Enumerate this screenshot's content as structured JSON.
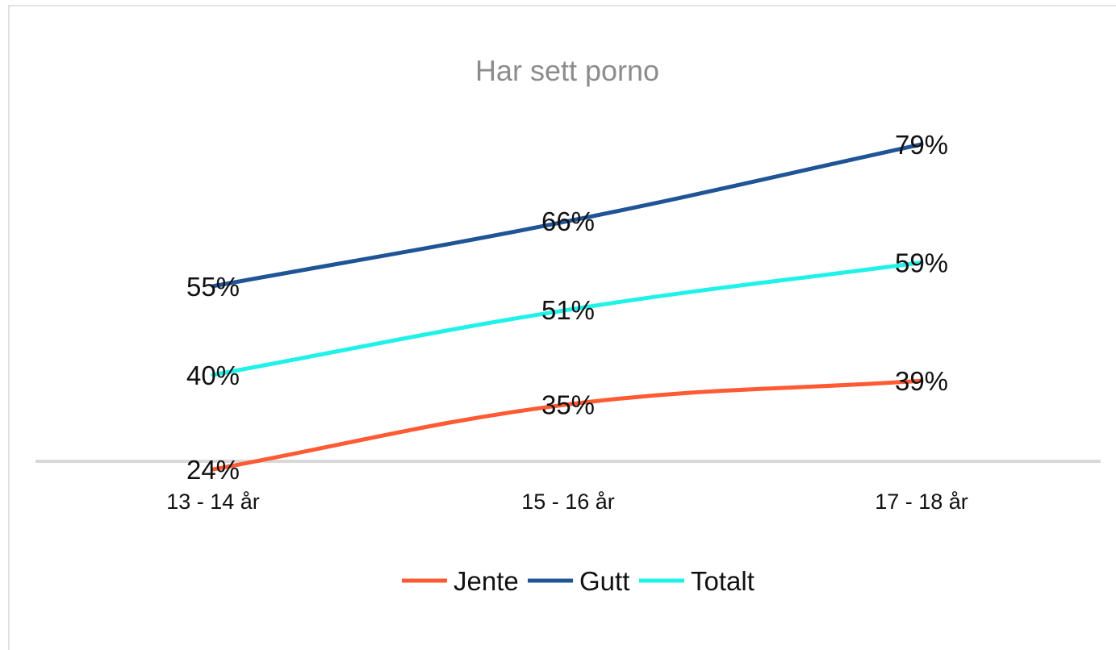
{
  "chart_data": {
    "type": "line",
    "title": "Har sett  porno",
    "categories": [
      "13 - 14 år",
      "15 - 16 år",
      "17 - 18 år"
    ],
    "series": [
      {
        "name": "Jente",
        "values": [
          24,
          35,
          39
        ],
        "labels": [
          "24%",
          "35%",
          "39%"
        ],
        "color": "#ff5a33"
      },
      {
        "name": "Gutt",
        "values": [
          55,
          66,
          79
        ],
        "labels": [
          "55%",
          "66%",
          "79%"
        ],
        "color": "#1f5597"
      },
      {
        "name": "Totalt",
        "values": [
          40,
          51,
          59
        ],
        "labels": [
          "40%",
          "51%",
          "59%"
        ],
        "color": "#1ff2e8"
      }
    ],
    "xlabel": "",
    "ylabel": "",
    "grid": false,
    "legend_position": "bottom",
    "axis_color": "#d9d9d9"
  }
}
